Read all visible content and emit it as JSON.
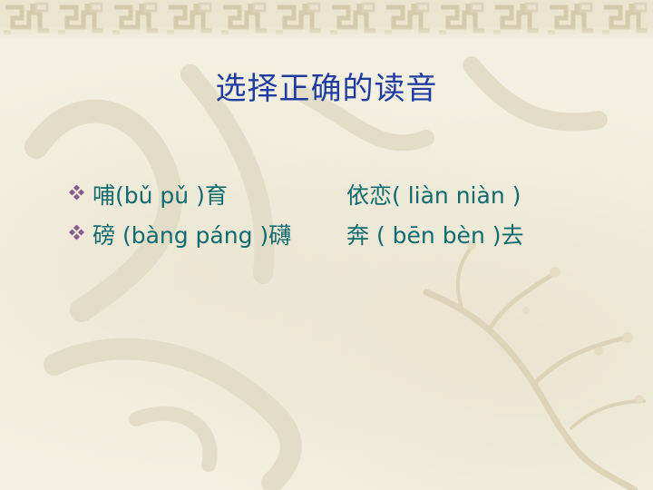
{
  "slide": {
    "title": "选择正确的读音",
    "rows": [
      {
        "left": "哺(bǔ  pǔ )育",
        "right": "依恋( liàn  niàn )"
      },
      {
        "left": "磅 (bàng páng )礴",
        "right": "奔 ( bēn  bèn )去"
      }
    ]
  },
  "colors": {
    "title": "#1f3da0",
    "text": "#0f6b70",
    "bullet": "#8a5a8c",
    "background": "#f4f0e1",
    "border": "#d8d0b4"
  },
  "icons": {
    "bullet": "diamond-quad-bullet-icon",
    "border": "chinese-knot-border-pattern",
    "background": "calligraphy-and-plum-branch-watermark"
  }
}
